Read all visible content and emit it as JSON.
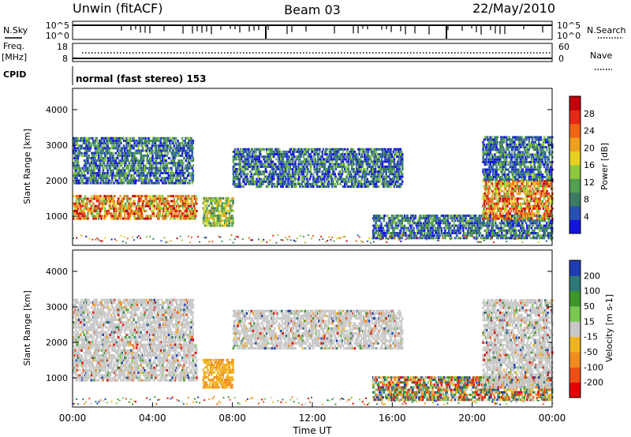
{
  "header": {
    "station": "Unwin (fitACF)",
    "beam": "Beam 03",
    "date": "22/May/2010"
  },
  "strips": {
    "nsky_label": "N.Sky",
    "nsearch_label": "N.Search",
    "noise_ticks_left": [
      "10^5",
      "10^0"
    ],
    "noise_ticks_right": [
      "10^5",
      "10^0"
    ],
    "freq_label": "Freq.",
    "freq_unit": "[MHz]",
    "nave_label": "Nave",
    "freq_ticks": [
      "18",
      "8"
    ],
    "nave_ticks": [
      "60",
      "0"
    ],
    "cpid_label": "CPID",
    "cpid_text": "normal (fast stereo) 153"
  },
  "chart_data": [
    {
      "type": "heatmap",
      "panel": "power",
      "ylabel": "Slant Range [km]",
      "ylim": [
        180,
        4600
      ],
      "yticks": [
        "1000",
        "2000",
        "3000",
        "4000"
      ],
      "xlim_hours": [
        0,
        24
      ],
      "colorbar": {
        "label": "Power [dB]",
        "ticks": [
          "4",
          "8",
          "12",
          "16",
          "20",
          "24",
          "28"
        ],
        "colors": [
          "#1414e0",
          "#2850b4",
          "#3c7c64",
          "#50a050",
          "#8cc83c",
          "#e6d21e",
          "#f0a01e",
          "#f06414",
          "#e62814",
          "#c8000a"
        ]
      },
      "regions": [
        {
          "t0": 0.0,
          "t1": 6.2,
          "r0": 900,
          "r1": 1600,
          "level": "high"
        },
        {
          "t0": 0.0,
          "t1": 6.0,
          "r0": 1900,
          "r1": 3200,
          "level": "low"
        },
        {
          "t0": 6.5,
          "t1": 8.0,
          "r0": 700,
          "r1": 1500,
          "level": "mid"
        },
        {
          "t0": 8.0,
          "t1": 16.5,
          "r0": 1800,
          "r1": 2900,
          "level": "low"
        },
        {
          "t0": 15.0,
          "t1": 24.0,
          "r0": 350,
          "r1": 1000,
          "level": "low"
        },
        {
          "t0": 20.5,
          "t1": 24.0,
          "r0": 900,
          "r1": 2000,
          "level": "high"
        },
        {
          "t0": 20.5,
          "t1": 24.0,
          "r0": 2000,
          "r1": 3200,
          "level": "low"
        }
      ]
    },
    {
      "type": "heatmap",
      "panel": "velocity",
      "ylabel": "Slant Range [km]",
      "ylim": [
        180,
        4600
      ],
      "yticks": [
        "1000",
        "2000",
        "3000",
        "4000"
      ],
      "xlim_hours": [
        0,
        24
      ],
      "xticks": [
        "00:00",
        "04:00",
        "08:00",
        "12:00",
        "16:00",
        "20:00",
        "00:00"
      ],
      "xlabel": "Time UT",
      "colorbar": {
        "label": "Velocity [m s-1]",
        "ticks": [
          "-200",
          "-100",
          "-50",
          "-15",
          "15",
          "50",
          "100",
          "200"
        ],
        "colors": [
          "#e60000",
          "#f05014",
          "#f08c1e",
          "#f0b41e",
          "#c8c8c8",
          "#78c850",
          "#3c9628",
          "#2d7878",
          "#1e3cb4"
        ]
      },
      "regions": [
        {
          "t0": 0.0,
          "t1": 6.2,
          "r0": 900,
          "r1": 1900,
          "level": "zero"
        },
        {
          "t0": 0.0,
          "t1": 6.0,
          "r0": 1900,
          "r1": 3200,
          "level": "zero"
        },
        {
          "t0": 6.5,
          "t1": 8.0,
          "r0": 700,
          "r1": 1500,
          "level": "negative"
        },
        {
          "t0": 8.0,
          "t1": 16.5,
          "r0": 1800,
          "r1": 2900,
          "level": "zero"
        },
        {
          "t0": 15.0,
          "t1": 24.0,
          "r0": 350,
          "r1": 1000,
          "level": "mixed"
        },
        {
          "t0": 20.5,
          "t1": 24.0,
          "r0": 700,
          "r1": 3200,
          "level": "zero"
        }
      ]
    }
  ]
}
